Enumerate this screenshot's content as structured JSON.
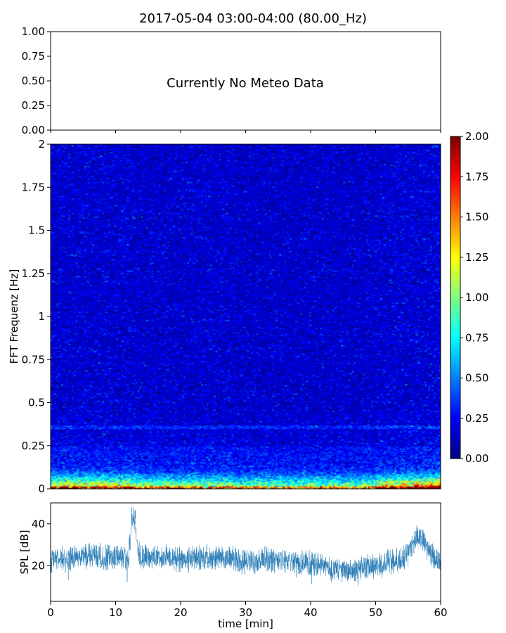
{
  "figure": {
    "title": "2017-05-04 03:00-04:00 (80.00_Hz)"
  },
  "chart_data": [
    {
      "type": "line",
      "panel": "meteo",
      "message": "Currently No Meteo Data",
      "xlim": [
        0,
        60
      ],
      "ylim": [
        0.0,
        1.0
      ],
      "y_ticks": [
        "0.00",
        "0.25",
        "0.50",
        "0.75",
        "1.00"
      ],
      "series": []
    },
    {
      "type": "heatmap",
      "panel": "spectrogram",
      "ylabel": "FFT Frequenz [Hz]",
      "xlim": [
        0,
        60
      ],
      "ylim": [
        0,
        2
      ],
      "y_ticks": [
        "0",
        "0.25",
        "0.5",
        "0.75",
        "1",
        "1.25",
        "1.5",
        "1.75",
        "2"
      ],
      "colormap": "jet",
      "colorbar": {
        "range": [
          0.0,
          2.0
        ],
        "ticks": [
          "0.00",
          "0.25",
          "0.50",
          "0.75",
          "1.00",
          "1.25",
          "1.50",
          "1.75",
          "2.00"
        ]
      },
      "description_values": {
        "background_level": 0.15,
        "low_freq_band_hz": [
          0.0,
          0.15
        ],
        "low_freq_peak_level": 1.8,
        "elevated_band_hz": [
          0.35,
          0.37
        ]
      }
    },
    {
      "type": "line",
      "panel": "spl",
      "xlabel": "time [min]",
      "ylabel": "SPL [dB]",
      "xlim": [
        0,
        60
      ],
      "ylim": [
        3,
        50
      ],
      "x_ticks": [
        "0",
        "10",
        "20",
        "30",
        "40",
        "50",
        "60"
      ],
      "y_ticks": [
        "20",
        "40"
      ],
      "series": [
        {
          "color": "#1f77b4",
          "x": [
            0,
            2,
            4,
            6,
            8,
            10,
            11,
            12,
            12.5,
            13,
            13.5,
            15,
            18,
            20,
            22,
            25,
            28,
            30,
            33,
            36,
            38,
            40,
            42,
            44,
            46,
            48,
            50,
            52,
            53,
            54,
            55,
            56,
            57,
            58,
            59,
            60
          ],
          "y": [
            22,
            23,
            24,
            25,
            24,
            24,
            24,
            24,
            42,
            43,
            25,
            24,
            24,
            23,
            24,
            24,
            23,
            22,
            23,
            22,
            21,
            21,
            20,
            18,
            18,
            19,
            20,
            21,
            22,
            24,
            26,
            33,
            34,
            28,
            24,
            22
          ],
          "spread_db": 5
        }
      ]
    }
  ]
}
